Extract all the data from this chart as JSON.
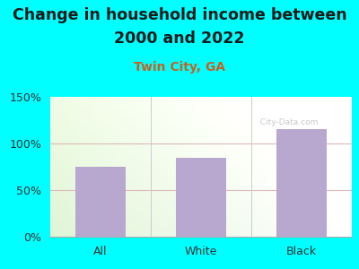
{
  "categories": [
    "All",
    "White",
    "Black"
  ],
  "values": [
    75,
    85,
    115
  ],
  "bar_color": "#b8a8d0",
  "title_line1": "Change in household income between",
  "title_line2": "2000 and 2022",
  "subtitle": "Twin City, GA",
  "title_fontsize": 12.5,
  "subtitle_fontsize": 10,
  "ylim": [
    0,
    150
  ],
  "yticks": [
    0,
    50,
    100,
    150
  ],
  "ytick_labels": [
    "0%",
    "50%",
    "100%",
    "150%"
  ],
  "background_color": "#00ffff",
  "grid_color": "#ddb8b8",
  "watermark": "City-Data.com",
  "title_color": "#1a1a1a",
  "subtitle_color": "#c86020"
}
